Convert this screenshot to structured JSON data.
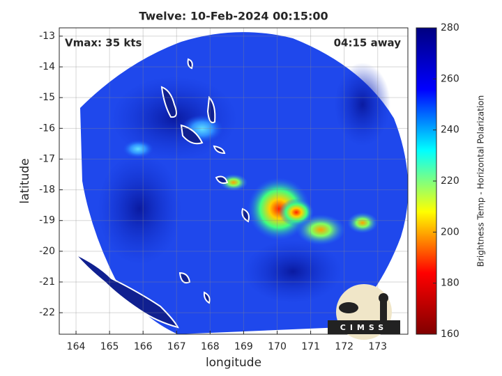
{
  "chart_data": {
    "type": "image",
    "title": "Twelve: 10-Feb-2024 00:15:00",
    "annotations": [
      "Vmax: 35 kts",
      "04:15 away"
    ],
    "xlabel": "longitude",
    "ylabel": "latitude",
    "xlim": [
      163.5,
      173.9
    ],
    "ylim": [
      -22.7,
      -12.73
    ],
    "xticks": [
      164,
      165,
      166,
      167,
      168,
      169,
      170,
      171,
      172,
      173
    ],
    "yticks": [
      -13,
      -14,
      -15,
      -16,
      -17,
      -18,
      -19,
      -20,
      -21,
      -22
    ],
    "grid": true,
    "colorbar": {
      "label": "Brightness Temp - Horizontal Polarization",
      "lim": [
        160,
        280
      ],
      "ticks": [
        160,
        180,
        200,
        220,
        240,
        260,
        280
      ],
      "colors": [
        "#800000",
        "#ff0000",
        "#ffff00",
        "#00ffff",
        "#0000ff",
        "#000080"
      ]
    },
    "logo": "CIMSS"
  }
}
